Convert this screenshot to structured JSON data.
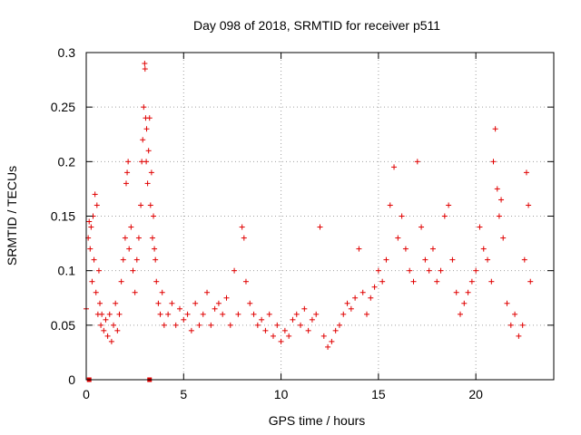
{
  "chart_data": {
    "type": "scatter",
    "title": "Day 098 of 2018, SRMTID for receiver p511",
    "xlabel": "GPS time / hours",
    "ylabel": "SRMTID / TECUs",
    "xlim": [
      0,
      24
    ],
    "ylim": [
      0,
      0.3
    ],
    "x_ticks": [
      "0",
      "5",
      "10",
      "15",
      "20"
    ],
    "x_tick_values": [
      0,
      5,
      10,
      15,
      20
    ],
    "y_ticks": [
      "0",
      "0.05",
      "0.1",
      "0.15",
      "0.2",
      "0.25",
      "0.3"
    ],
    "y_tick_values": [
      0,
      0.05,
      0.1,
      0.15,
      0.2,
      0.25,
      0.3
    ],
    "grid": true,
    "marker": "+",
    "color": "#e00000",
    "series": [
      {
        "name": "SRMTID",
        "x": [
          0.0,
          0.1,
          0.15,
          0.2,
          0.25,
          0.3,
          0.35,
          0.4,
          0.45,
          0.5,
          0.55,
          0.6,
          0.65,
          0.7,
          0.75,
          0.8,
          0.9,
          1.0,
          1.1,
          1.2,
          1.3,
          1.4,
          1.5,
          1.6,
          1.7,
          1.8,
          1.9,
          2.0,
          2.05,
          2.1,
          2.15,
          2.2,
          2.3,
          2.4,
          2.5,
          2.6,
          2.7,
          2.8,
          2.85,
          2.9,
          2.95,
          3.0,
          3.02,
          3.05,
          3.08,
          3.1,
          3.15,
          3.2,
          3.25,
          3.3,
          3.35,
          3.4,
          3.45,
          3.5,
          3.55,
          3.6,
          3.7,
          3.8,
          3.9,
          4.0,
          4.2,
          4.4,
          4.6,
          4.8,
          5.0,
          5.2,
          5.4,
          5.6,
          5.8,
          6.0,
          6.2,
          6.4,
          6.6,
          6.8,
          7.0,
          7.2,
          7.4,
          7.6,
          7.8,
          8.0,
          8.1,
          8.2,
          8.4,
          8.6,
          8.8,
          9.0,
          9.2,
          9.4,
          9.6,
          9.8,
          10.0,
          10.2,
          10.4,
          10.6,
          10.8,
          11.0,
          11.2,
          11.4,
          11.6,
          11.8,
          12.0,
          12.2,
          12.4,
          12.6,
          12.8,
          13.0,
          13.2,
          13.4,
          13.6,
          13.8,
          14.0,
          14.2,
          14.4,
          14.6,
          14.8,
          15.0,
          15.2,
          15.4,
          15.6,
          15.8,
          16.0,
          16.2,
          16.4,
          16.6,
          16.8,
          17.0,
          17.2,
          17.4,
          17.6,
          17.8,
          18.0,
          18.2,
          18.4,
          18.6,
          18.8,
          19.0,
          19.2,
          19.4,
          19.6,
          19.8,
          20.0,
          20.2,
          20.4,
          20.6,
          20.8,
          20.9,
          21.0,
          21.1,
          21.2,
          21.3,
          21.4,
          21.6,
          21.8,
          22.0,
          22.2,
          22.4,
          22.5,
          22.6,
          22.7,
          22.8
        ],
        "y": [
          0.065,
          0.13,
          0.145,
          0.12,
          0.14,
          0.09,
          0.15,
          0.11,
          0.17,
          0.08,
          0.16,
          0.06,
          0.1,
          0.07,
          0.05,
          0.06,
          0.045,
          0.055,
          0.04,
          0.06,
          0.035,
          0.05,
          0.07,
          0.045,
          0.06,
          0.09,
          0.11,
          0.13,
          0.18,
          0.19,
          0.2,
          0.12,
          0.14,
          0.1,
          0.08,
          0.11,
          0.13,
          0.16,
          0.2,
          0.22,
          0.25,
          0.29,
          0.285,
          0.24,
          0.2,
          0.23,
          0.18,
          0.21,
          0.24,
          0.16,
          0.19,
          0.13,
          0.15,
          0.12,
          0.11,
          0.09,
          0.07,
          0.06,
          0.08,
          0.05,
          0.06,
          0.07,
          0.05,
          0.065,
          0.055,
          0.06,
          0.045,
          0.07,
          0.05,
          0.06,
          0.08,
          0.05,
          0.065,
          0.07,
          0.06,
          0.075,
          0.05,
          0.1,
          0.06,
          0.14,
          0.13,
          0.09,
          0.07,
          0.06,
          0.05,
          0.055,
          0.045,
          0.06,
          0.04,
          0.05,
          0.035,
          0.045,
          0.04,
          0.055,
          0.06,
          0.05,
          0.065,
          0.045,
          0.055,
          0.06,
          0.14,
          0.04,
          0.03,
          0.035,
          0.045,
          0.05,
          0.06,
          0.07,
          0.065,
          0.075,
          0.12,
          0.08,
          0.06,
          0.075,
          0.085,
          0.1,
          0.09,
          0.11,
          0.16,
          0.195,
          0.13,
          0.15,
          0.12,
          0.1,
          0.09,
          0.2,
          0.14,
          0.11,
          0.1,
          0.12,
          0.09,
          0.1,
          0.15,
          0.16,
          0.11,
          0.08,
          0.06,
          0.07,
          0.08,
          0.09,
          0.1,
          0.14,
          0.12,
          0.11,
          0.09,
          0.2,
          0.23,
          0.175,
          0.15,
          0.165,
          0.13,
          0.07,
          0.05,
          0.06,
          0.04,
          0.05,
          0.11,
          0.19,
          0.16,
          0.09
        ]
      }
    ],
    "bottom_markers": [
      {
        "x": 0.15,
        "y": 0
      },
      {
        "x": 3.25,
        "y": 0
      }
    ]
  }
}
